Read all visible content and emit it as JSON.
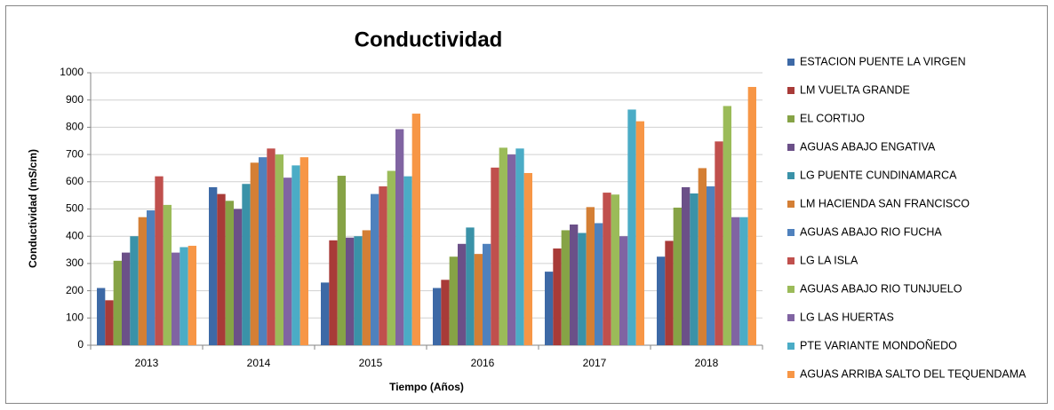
{
  "chart_data": {
    "type": "bar",
    "title": "Conductividad",
    "x_label": "Tiempo (Años)",
    "y_label": "Conductividad (mS/cm)",
    "categories": [
      "2013",
      "2014",
      "2015",
      "2016",
      "2017",
      "2018"
    ],
    "series": [
      {
        "name": "ESTACION PUENTE LA VIRGEN",
        "color": "#3D69A6",
        "values": [
          210,
          580,
          230,
          210,
          270,
          325
        ]
      },
      {
        "name": "LM VUELTA GRANDE",
        "color": "#A83B38",
        "values": [
          165,
          555,
          385,
          240,
          355,
          383
        ]
      },
      {
        "name": "EL CORTIJO",
        "color": "#86A346",
        "values": [
          310,
          530,
          622,
          325,
          422,
          505
        ]
      },
      {
        "name": "AGUAS ABAJO ENGATIVA",
        "color": "#6B5088",
        "values": [
          340,
          500,
          395,
          372,
          443,
          580
        ]
      },
      {
        "name": "LG PUENTE CUNDINAMARCA",
        "color": "#3A92A8",
        "values": [
          400,
          592,
          400,
          432,
          412,
          557
        ]
      },
      {
        "name": "LM HACIENDA SAN FRANCISCO",
        "color": "#D47F35",
        "values": [
          470,
          670,
          422,
          335,
          507,
          650
        ]
      },
      {
        "name": "AGUAS ABAJO RIO FUCHA",
        "color": "#4F81BD",
        "values": [
          495,
          690,
          555,
          372,
          448,
          583
        ]
      },
      {
        "name": "LG LA ISLA",
        "color": "#C0504D",
        "values": [
          620,
          722,
          583,
          652,
          560,
          748
        ]
      },
      {
        "name": "AGUAS ABAJO RIO TUNJUELO",
        "color": "#9BBB59",
        "values": [
          515,
          700,
          640,
          725,
          553,
          878
        ]
      },
      {
        "name": "LG LAS HUERTAS",
        "color": "#8064A2",
        "values": [
          340,
          615,
          793,
          700,
          400,
          470
        ]
      },
      {
        "name": "PTE VARIANTE MONDOÑEDO",
        "color": "#4BACC6",
        "values": [
          360,
          660,
          620,
          722,
          865,
          470
        ]
      },
      {
        "name": "AGUAS ARRIBA SALTO DEL TEQUENDAMA",
        "color": "#F79646",
        "values": [
          365,
          690,
          850,
          632,
          822,
          948
        ]
      }
    ],
    "ylim": [
      0,
      1000
    ],
    "yticks": [
      0,
      100,
      200,
      300,
      400,
      500,
      600,
      700,
      800,
      900,
      1000
    ],
    "grid": true,
    "legend": "right"
  }
}
